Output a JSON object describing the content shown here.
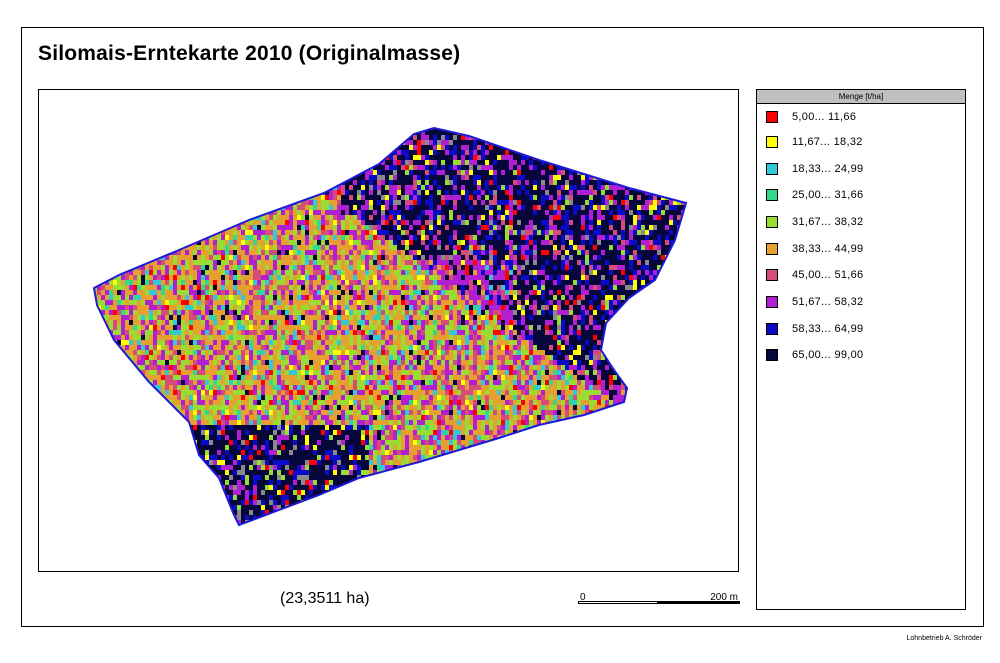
{
  "title": "Silomais-Erntekarte 2010 (Originalmasse)",
  "area_label": "(23,3511 ha)",
  "scale": {
    "start_label": "0",
    "end_label": "200 m"
  },
  "legend": {
    "heading": "Menge [t/ha]",
    "items": [
      {
        "label": "5,00... 11,66",
        "color": "#ff0000"
      },
      {
        "label": "11,67... 18,32",
        "color": "#ffff00"
      },
      {
        "label": "18,33... 24,99",
        "color": "#33c8d8"
      },
      {
        "label": "25,00... 31,66",
        "color": "#33d88c"
      },
      {
        "label": "31,67... 38,32",
        "color": "#99dd33"
      },
      {
        "label": "38,33... 44,99",
        "color": "#e6a030"
      },
      {
        "label": "45,00... 51,66",
        "color": "#d64c78"
      },
      {
        "label": "51,67... 58,32",
        "color": "#b21fd2"
      },
      {
        "label": "58,33... 64,99",
        "color": "#0a0ac8"
      },
      {
        "label": "65,00... 99,00",
        "color": "#06063a"
      }
    ]
  },
  "credit": "Lohnbetrieb A. Schröder"
}
